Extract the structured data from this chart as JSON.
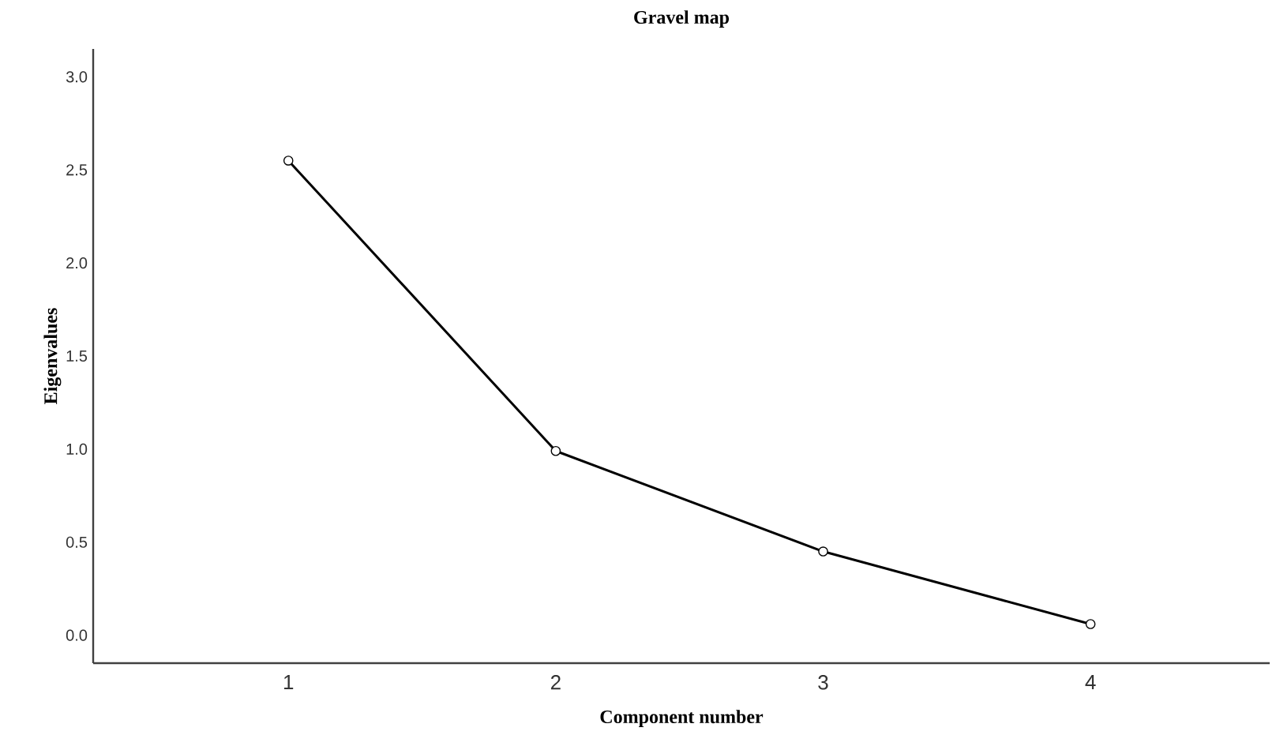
{
  "chart_data": {
    "type": "line",
    "title": "Gravel map",
    "xlabel": "Component number",
    "ylabel": "Eigenvalues",
    "x": [
      1,
      2,
      3,
      4
    ],
    "series": [
      {
        "color": "#000000",
        "values": [
          2.55,
          0.99,
          0.45,
          0.06
        ]
      }
    ],
    "xlim": [
      0.27,
      4.67
    ],
    "xticks": [
      1,
      2,
      3,
      4
    ],
    "ylim": [
      -0.15,
      3.15
    ],
    "yticks": [
      {
        "value": 0,
        "label": "0.0"
      },
      {
        "value": 0.5,
        "label": "0.5"
      },
      {
        "value": 1,
        "label": "1.0"
      },
      {
        "value": 1.5,
        "label": "1.5"
      },
      {
        "value": 2,
        "label": "2.0"
      },
      {
        "value": 2.5,
        "label": "2.5"
      },
      {
        "value": 3,
        "label": "3.0"
      }
    ],
    "grid": false,
    "marker": "circle",
    "line_style": "solid"
  }
}
